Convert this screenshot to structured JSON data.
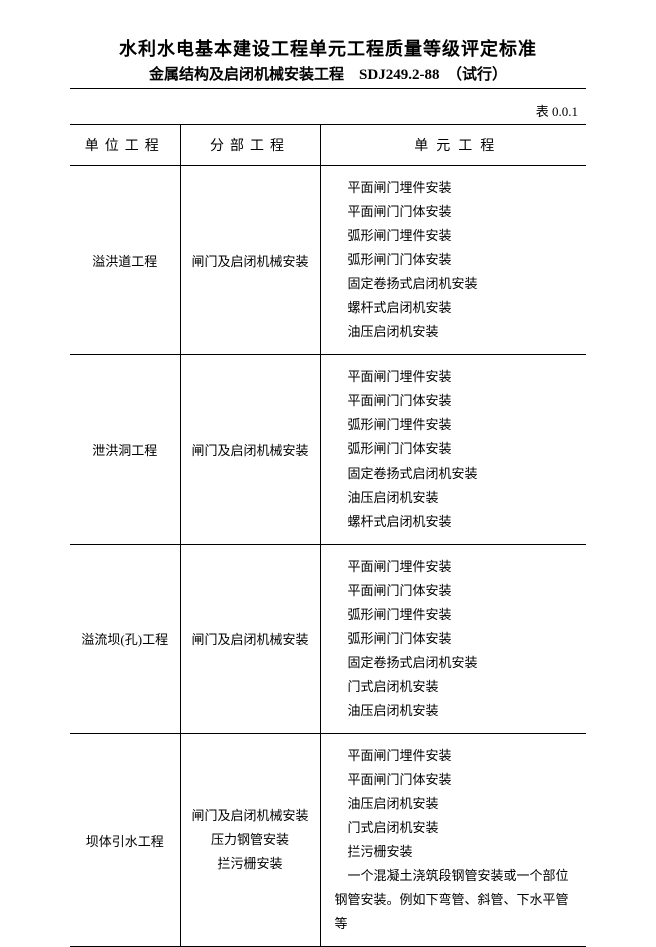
{
  "doc": {
    "title_main": "水利水电基本建设工程单元工程质量等级评定标准",
    "title_sub": "金属结构及启闭机械安装工程　SDJ249.2-88　（试行）",
    "table_number": "表 0.0.1",
    "columns": {
      "c1": "单位工程",
      "c2": "分部工程",
      "c3": "单元工程"
    },
    "rows": [
      {
        "unit": "溢洪道工程",
        "section": "闸门及启闭机械安装",
        "elements": [
          "平面闸门埋件安装",
          "平面闸门门体安装",
          "弧形闸门埋件安装",
          "弧形闸门门体安装",
          "固定卷扬式启闭机安装",
          "螺杆式启闭机安装",
          "油压启闭机安装"
        ]
      },
      {
        "unit": "泄洪洞工程",
        "section": "闸门及启闭机械安装",
        "elements": [
          "平面闸门埋件安装",
          "平面闸门门体安装",
          "弧形闸门埋件安装",
          "弧形闸门门体安装",
          "固定卷扬式启闭机安装",
          "油压启闭机安装",
          "螺杆式启闭机安装"
        ]
      },
      {
        "unit": "溢流坝(孔)工程",
        "section": "闸门及启闭机械安装",
        "elements": [
          "平面闸门埋件安装",
          "平面闸门门体安装",
          "弧形闸门埋件安装",
          "弧形闸门门体安装",
          "固定卷扬式启闭机安装",
          "门式启闭机安装",
          "油压启闭机安装"
        ]
      },
      {
        "unit": "坝体引水工程",
        "section_lines": [
          "闸门及启闭机械安装",
          "压力钢管安装",
          "拦污栅安装"
        ],
        "elements": [
          "平面闸门埋件安装",
          "平面闸门门体安装",
          "油压启闭机安装",
          "门式启闭机安装",
          "拦污栅安装",
          "一个混凝土浇筑段钢管安装或一个部位钢管安装。例如下弯管、斜管、下水平管等"
        ]
      }
    ]
  }
}
